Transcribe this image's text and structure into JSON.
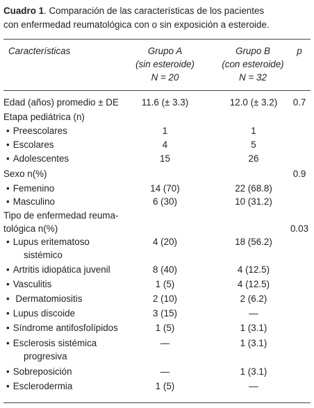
{
  "caption": {
    "label": "Cuadro 1",
    "line1": ". Comparación de las características de los pacientes",
    "line2": "con enfermedad reumatológica con o sin exposición a esteroide."
  },
  "headers": {
    "caracteristicas": "Características",
    "grupo_a": [
      "Grupo A",
      "(sin esteroide)",
      "N = 20"
    ],
    "grupo_b": [
      "Grupo B",
      "(con esteroide)",
      "N = 32"
    ],
    "p": "p"
  },
  "rows": [
    {
      "label": "Edad (años) promedio ± DE",
      "a": "11.6 (± 3.3)",
      "b": "12.0 (± 3.2)",
      "p": "0.7"
    },
    {
      "label": "Etapa pediátrica (n)",
      "a": "",
      "b": "",
      "p": ""
    },
    {
      "label": "Preescolares",
      "bullet": "•",
      "a": "1",
      "b": "1",
      "p": ""
    },
    {
      "label": "Escolares",
      "bullet": "•",
      "a": "4",
      "b": "5",
      "p": ""
    },
    {
      "label": "Adolescentes",
      "bullet": "•",
      "a": "15",
      "b": "26",
      "p": ""
    },
    {
      "label": "Sexo n(%)",
      "a": "",
      "b": "",
      "p": "0.9"
    },
    {
      "label": "Femenino",
      "bullet": "•",
      "a": "14 (70)",
      "b": "22 (68.8)",
      "p": ""
    },
    {
      "label": "Masculino",
      "bullet": "•",
      "a": "6 (30)",
      "b": "10 (31.2)",
      "p": ""
    },
    {
      "label": "Tipo de enfermedad reuma-",
      "a": "",
      "b": "",
      "p": ""
    },
    {
      "label": "tológica n(%)",
      "a": "",
      "b": "",
      "p": "0.03"
    },
    {
      "label": "Lupus eritematoso",
      "label2": "sistémico",
      "bullet": "•",
      "a": "4 (20)",
      "b": "18 (56.2)",
      "p": ""
    },
    {
      "label": "Artritis idiopática juvenil",
      "bullet": "•",
      "a": "8 (40)",
      "b": "4 (12.5)",
      "p": ""
    },
    {
      "label": "Vasculitis",
      "bullet": "•",
      "a": "1 (5)",
      "b": "4 (12.5)",
      "p": ""
    },
    {
      "label": " Dermatomiositis",
      "bullet": "•",
      "a": "2 (10)",
      "b": "2 (6.2)",
      "p": ""
    },
    {
      "label": "Lupus discoide",
      "bullet": "•",
      "a": "3 (15)",
      "b": "—",
      "p": ""
    },
    {
      "label": "Síndrome antifosfolípidos",
      "bullet": "•",
      "a": "1 (5)",
      "b": "1 (3.1)",
      "p": ""
    },
    {
      "label": "Esclerosis sistémica",
      "label2": "progresiva",
      "bullet": "•",
      "a": "—",
      "b": "1 (3.1)",
      "p": ""
    },
    {
      "label": "Sobreposición",
      "bullet": "•",
      "a": "—",
      "b": "1 (3.1)",
      "p": ""
    },
    {
      "label": "Esclerodermia",
      "bullet": "•",
      "a": "1 (5)",
      "b": "—",
      "p": ""
    }
  ]
}
